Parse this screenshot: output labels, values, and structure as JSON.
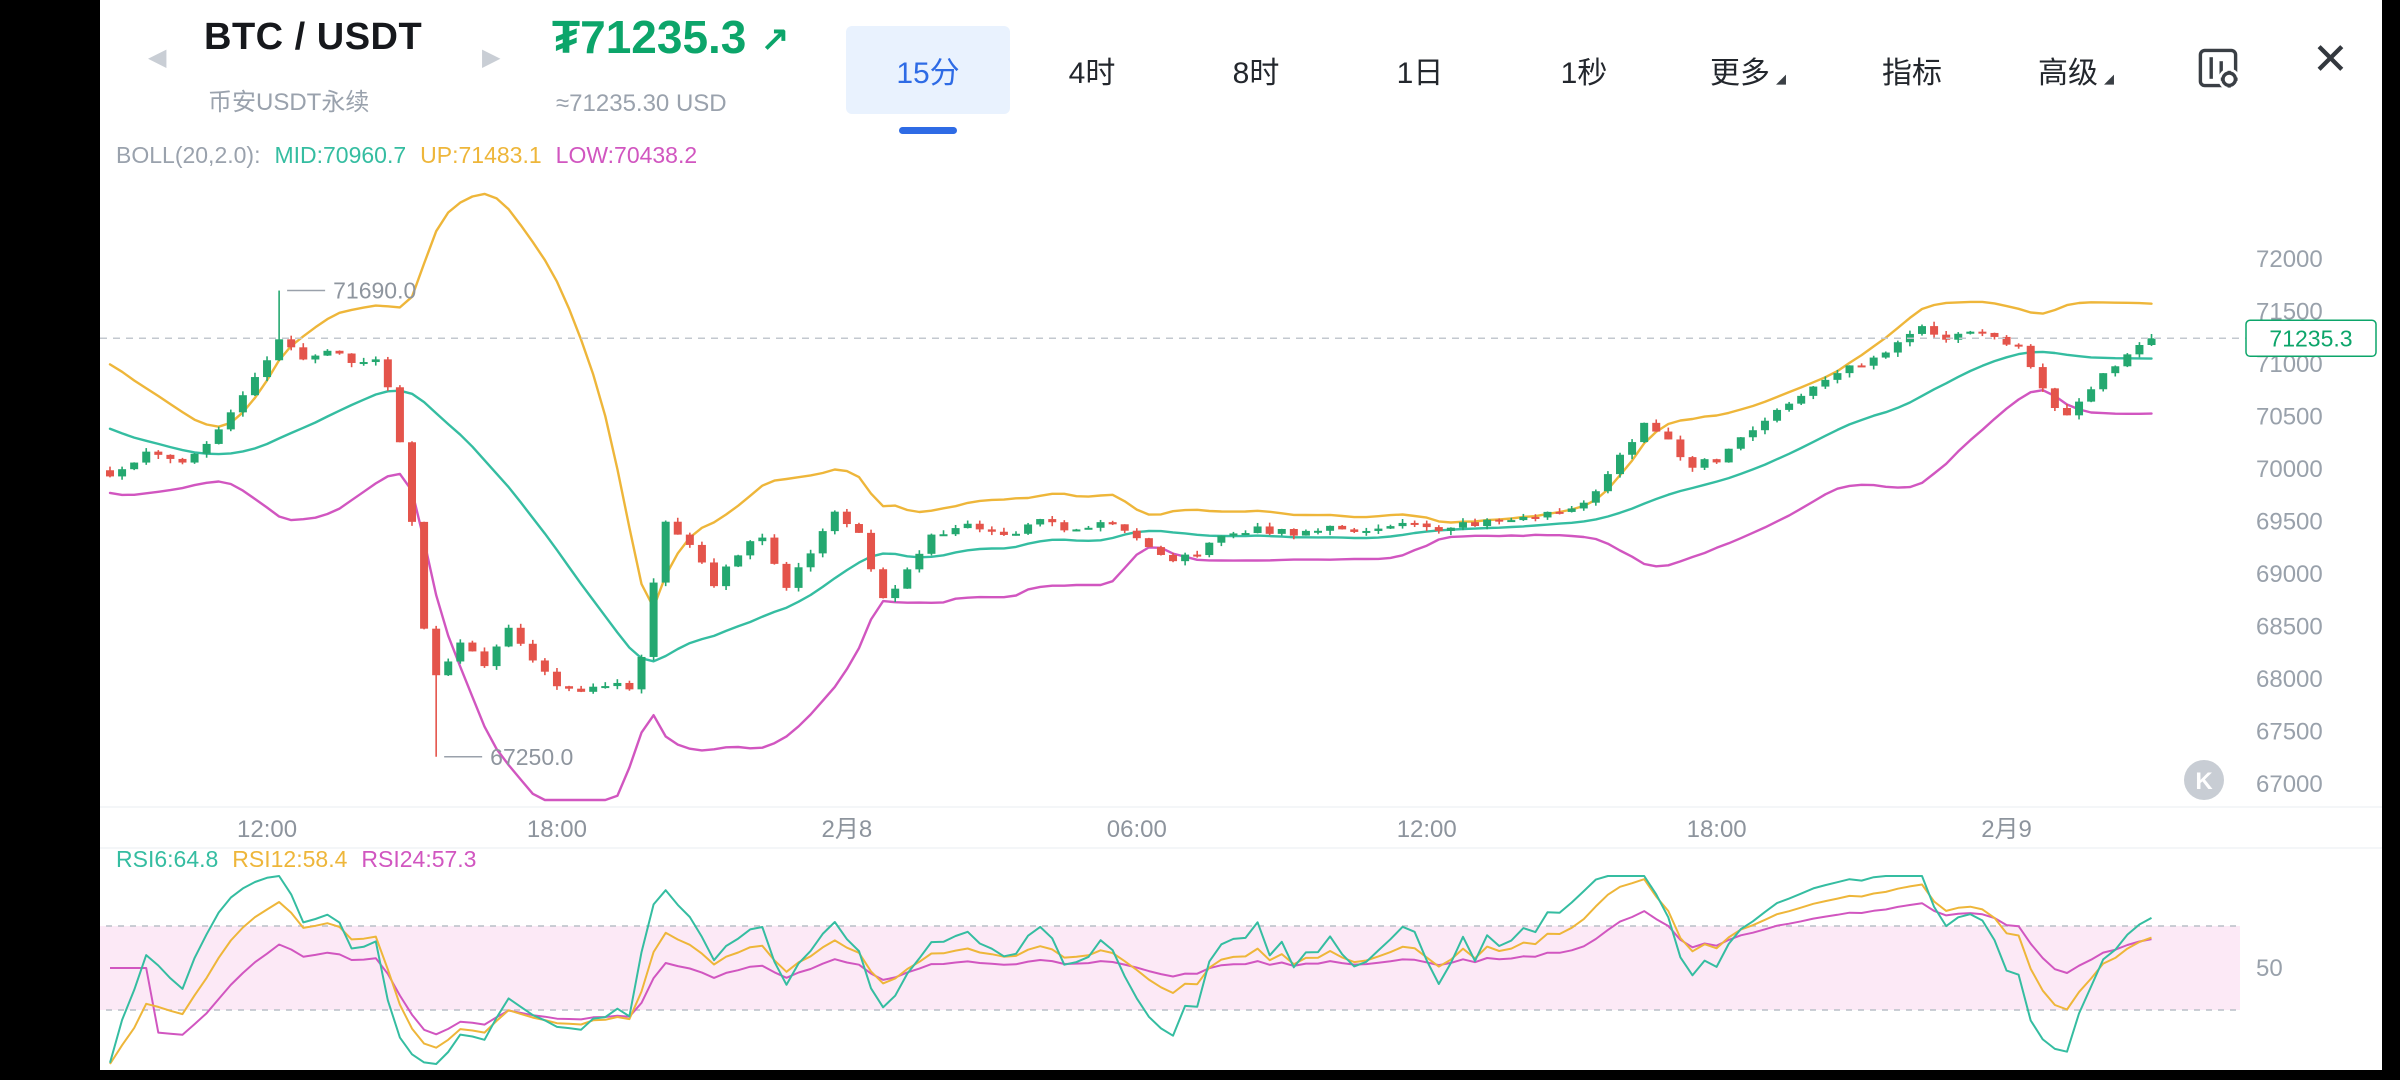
{
  "header": {
    "symbol": "BTC / USDT",
    "subtitle": "币安USDT永续",
    "nav_prev": "◀",
    "nav_next": "▶",
    "price_prefix": "₮",
    "price": "71235.3",
    "trend_arrow": "↗",
    "price_approx": "≈71235.30 USD",
    "tabs": [
      {
        "label": "15分",
        "active": true,
        "dropdown": false
      },
      {
        "label": "4时",
        "active": false,
        "dropdown": false
      },
      {
        "label": "8时",
        "active": false,
        "dropdown": false
      },
      {
        "label": "1日",
        "active": false,
        "dropdown": false
      },
      {
        "label": "1秒",
        "active": false,
        "dropdown": false
      },
      {
        "label": "更多",
        "active": false,
        "dropdown": true
      },
      {
        "label": "指标",
        "active": false,
        "dropdown": false
      },
      {
        "label": "高级",
        "active": false,
        "dropdown": true
      }
    ],
    "close_label": "✕"
  },
  "indicators": {
    "boll_label": "BOLL(20,2.0):",
    "boll_mid": "MID:70960.7",
    "boll_up": "UP:71483.1",
    "boll_low": "LOW:70438.2",
    "rsi6": "RSI6:64.8",
    "rsi12": "RSI12:58.4",
    "rsi24": "RSI24:57.3"
  },
  "chart_data": {
    "type": "candlestick",
    "interval": "15m",
    "y_axis": {
      "min": 67000,
      "max": 72000,
      "step": 500
    },
    "x_axis_labels": [
      {
        "index": 13,
        "label": "12:00"
      },
      {
        "index": 37,
        "label": "18:00"
      },
      {
        "index": 61,
        "label": "2月8"
      },
      {
        "index": 85,
        "label": "06:00"
      },
      {
        "index": 109,
        "label": "12:00"
      },
      {
        "index": 133,
        "label": "18:00"
      },
      {
        "index": 157,
        "label": "2月9"
      }
    ],
    "current_price": 71235.3,
    "current_price_label": "71235.3",
    "high_annotation": {
      "index": 14,
      "price": 71690.0,
      "label": "71690.0"
    },
    "low_annotation": {
      "index": 27,
      "price": 67250.0,
      "label": "67250.0"
    },
    "candle_count": 170,
    "close_anchors": [
      [
        -20,
        70950
      ],
      [
        -12,
        70500
      ],
      [
        -6,
        70150
      ],
      [
        -1,
        69950
      ],
      [
        0,
        69900
      ],
      [
        3,
        70150
      ],
      [
        6,
        70050
      ],
      [
        9,
        70350
      ],
      [
        12,
        70900
      ],
      [
        14,
        71200
      ],
      [
        16,
        71050
      ],
      [
        18,
        71150
      ],
      [
        20,
        71000
      ],
      [
        22,
        71050
      ],
      [
        23,
        70800
      ],
      [
        24,
        70250
      ],
      [
        25,
        69500
      ],
      [
        26,
        68500
      ],
      [
        27,
        68050
      ],
      [
        28,
        68150
      ],
      [
        29,
        68350
      ],
      [
        31,
        68100
      ],
      [
        33,
        68450
      ],
      [
        35,
        68200
      ],
      [
        37,
        67950
      ],
      [
        39,
        67900
      ],
      [
        41,
        67950
      ],
      [
        43,
        67900
      ],
      [
        44,
        68200
      ],
      [
        45,
        68900
      ],
      [
        46,
        69500
      ],
      [
        48,
        69300
      ],
      [
        50,
        68900
      ],
      [
        52,
        69200
      ],
      [
        54,
        69350
      ],
      [
        56,
        68850
      ],
      [
        58,
        69200
      ],
      [
        60,
        69550
      ],
      [
        62,
        69350
      ],
      [
        64,
        68750
      ],
      [
        66,
        69000
      ],
      [
        68,
        69350
      ],
      [
        71,
        69450
      ],
      [
        74,
        69350
      ],
      [
        77,
        69480
      ],
      [
        80,
        69420
      ],
      [
        83,
        69480
      ],
      [
        86,
        69250
      ],
      [
        88,
        69100
      ],
      [
        90,
        69200
      ],
      [
        92,
        69350
      ],
      [
        95,
        69420
      ],
      [
        98,
        69380
      ],
      [
        101,
        69450
      ],
      [
        104,
        69400
      ],
      [
        107,
        69480
      ],
      [
        110,
        69420
      ],
      [
        113,
        69470
      ],
      [
        116,
        69500
      ],
      [
        119,
        69560
      ],
      [
        121,
        69600
      ],
      [
        123,
        69800
      ],
      [
        125,
        70100
      ],
      [
        127,
        70420
      ],
      [
        129,
        70250
      ],
      [
        131,
        70020
      ],
      [
        133,
        70080
      ],
      [
        135,
        70300
      ],
      [
        137,
        70450
      ],
      [
        139,
        70600
      ],
      [
        141,
        70750
      ],
      [
        143,
        70900
      ],
      [
        145,
        71000
      ],
      [
        147,
        71120
      ],
      [
        149,
        71280
      ],
      [
        150,
        71350
      ],
      [
        152,
        71220
      ],
      [
        154,
        71320
      ],
      [
        156,
        71230
      ],
      [
        158,
        71180
      ],
      [
        159,
        70980
      ],
      [
        160,
        70780
      ],
      [
        161,
        70580
      ],
      [
        162,
        70480
      ],
      [
        163,
        70620
      ],
      [
        164,
        70780
      ],
      [
        165,
        70880
      ],
      [
        166,
        70980
      ],
      [
        167,
        71050
      ],
      [
        168,
        71150
      ],
      [
        169,
        71235.3
      ]
    ],
    "boll": {
      "period": 20,
      "mult": 2.0
    },
    "rsi_periods": [
      6,
      12,
      24
    ],
    "rsi_guides": {
      "upper": 70,
      "mid": 50,
      "lower": 30,
      "mid_label": "50"
    },
    "watermark": "K",
    "colors": {
      "up": "#24a870",
      "down": "#e4544b",
      "boll_mid": "#35bda1",
      "boll_up": "#eeb63a",
      "boll_low": "#d156c0",
      "rsi6": "#35bda1",
      "rsi12": "#eeb63a",
      "rsi24": "#d156c0",
      "rsi_band_fill": "#f9d7ee",
      "dashed": "#c3c8cf",
      "axis_text": "#99a1ab",
      "time_text": "#8d949d",
      "annotation_text": "#8e959e",
      "price_green": "#0ca56a",
      "accent_blue": "#2e6be5",
      "watermark_fill": "#c8cdd4"
    }
  }
}
